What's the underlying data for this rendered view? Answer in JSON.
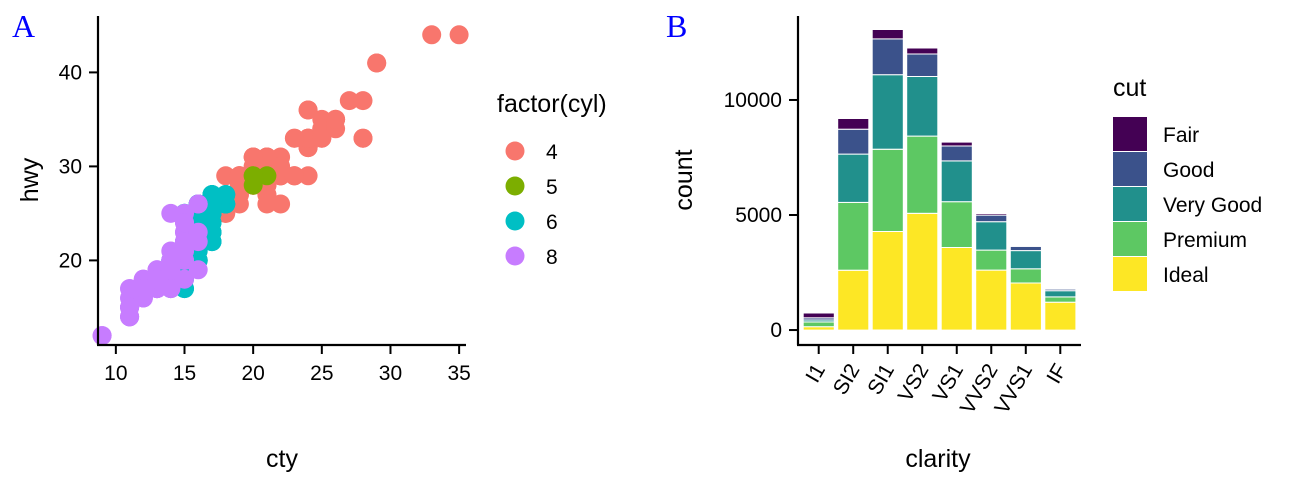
{
  "panel_tags": {
    "a": "A",
    "b": "B",
    "color": "#0000FF"
  },
  "chart_data": [
    {
      "type": "scatter",
      "tag": "A",
      "xlabel": "cty",
      "ylabel": "hwy",
      "xlim": [
        8.7,
        35.5
      ],
      "ylim": [
        11,
        46
      ],
      "xticks": [
        10,
        15,
        20,
        25,
        30,
        35
      ],
      "yticks": [
        20,
        30,
        40
      ],
      "grid": false,
      "legend": {
        "title": "factor(cyl)",
        "placement": "right"
      },
      "series": [
        {
          "name": "4",
          "color": "#F8766D",
          "points": [
            [
              18,
              29
            ],
            [
              21,
              29
            ],
            [
              20,
              31
            ],
            [
              21,
              30
            ],
            [
              18,
              26
            ],
            [
              18,
              26
            ],
            [
              18,
              25
            ],
            [
              19,
              29
            ],
            [
              21,
              29
            ],
            [
              20,
              28
            ],
            [
              19,
              27
            ],
            [
              18,
              25
            ],
            [
              21,
              27
            ],
            [
              19,
              26
            ],
            [
              19,
              28
            ],
            [
              22,
              26
            ],
            [
              21,
              29
            ],
            [
              20,
              29
            ],
            [
              22,
              29
            ],
            [
              24,
              32
            ],
            [
              24,
              32
            ],
            [
              24,
              32
            ],
            [
              22,
              29
            ],
            [
              19,
              29
            ],
            [
              20,
              30
            ],
            [
              23,
              29
            ],
            [
              21,
              28
            ],
            [
              24,
              33
            ],
            [
              33,
              44
            ],
            [
              35,
              44
            ],
            [
              29,
              41
            ],
            [
              24,
              33
            ],
            [
              24,
              33
            ],
            [
              21,
              31
            ],
            [
              21,
              28
            ],
            [
              18,
              26
            ],
            [
              21,
              29
            ],
            [
              19,
              27
            ],
            [
              21,
              30
            ],
            [
              20,
              30
            ],
            [
              21,
              31
            ],
            [
              28,
              33
            ],
            [
              25,
              33
            ],
            [
              24,
              33
            ],
            [
              25,
              34
            ],
            [
              27,
              37
            ],
            [
              25,
              35
            ],
            [
              25,
              34
            ],
            [
              26,
              34
            ],
            [
              26,
              35
            ],
            [
              23,
              33
            ],
            [
              22,
              29
            ],
            [
              24,
              29
            ],
            [
              22,
              29
            ],
            [
              21,
              29
            ],
            [
              17,
              23
            ],
            [
              20,
              31
            ],
            [
              20,
              28
            ],
            [
              21,
              27
            ],
            [
              22,
              31
            ],
            [
              23,
              29
            ],
            [
              28,
              37
            ],
            [
              26,
              35
            ],
            [
              29,
              41
            ],
            [
              21,
              30
            ],
            [
              22,
              30
            ],
            [
              24,
              36
            ],
            [
              23,
              33
            ],
            [
              21,
              28
            ],
            [
              23,
              29
            ],
            [
              24,
              36
            ],
            [
              28,
              33
            ],
            [
              25,
              33
            ],
            [
              26,
              35
            ],
            [
              19,
              29
            ],
            [
              19,
              29
            ],
            [
              20,
              28
            ],
            [
              21,
              31
            ],
            [
              20,
              31
            ],
            [
              16,
              20
            ],
            [
              21,
              26
            ]
          ]
        },
        {
          "name": "5",
          "color": "#7CAE00",
          "points": [
            [
              21,
              29
            ],
            [
              20,
              28
            ],
            [
              20,
              29
            ],
            [
              20,
              29
            ]
          ]
        },
        {
          "name": "6",
          "color": "#00BFC4",
          "points": [
            [
              16,
              26
            ],
            [
              16,
              26
            ],
            [
              17,
              27
            ],
            [
              15,
              25
            ],
            [
              16,
              26
            ],
            [
              15,
              25
            ],
            [
              17,
              26
            ],
            [
              17,
              27
            ],
            [
              16,
              23
            ],
            [
              17,
              25
            ],
            [
              17,
              26
            ],
            [
              15,
              17
            ],
            [
              15,
              17
            ],
            [
              14,
              20
            ],
            [
              16,
              20
            ],
            [
              14,
              19
            ],
            [
              15,
              20
            ],
            [
              17,
              22
            ],
            [
              18,
              27
            ],
            [
              18,
              26
            ],
            [
              17,
              24
            ],
            [
              17,
              23
            ],
            [
              17,
              23
            ],
            [
              16,
              26
            ],
            [
              16,
              23
            ],
            [
              17,
              22
            ],
            [
              17,
              25
            ],
            [
              15,
              19
            ],
            [
              16,
              25
            ],
            [
              15,
              22
            ],
            [
              16,
              26
            ],
            [
              17,
              25
            ],
            [
              18,
              27
            ],
            [
              16,
              24
            ],
            [
              15,
              18
            ],
            [
              18,
              26
            ],
            [
              17,
              25
            ],
            [
              14,
              17
            ],
            [
              15,
              19
            ],
            [
              15,
              25
            ],
            [
              16,
              21
            ],
            [
              17,
              25
            ],
            [
              17,
              26
            ],
            [
              16,
              24
            ],
            [
              14,
              20
            ],
            [
              15,
              22
            ],
            [
              18,
              26
            ],
            [
              17,
              27
            ],
            [
              16,
              26
            ],
            [
              16,
              25
            ],
            [
              18,
              26
            ],
            [
              17,
              26
            ],
            [
              17,
              27
            ],
            [
              16,
              20
            ],
            [
              15,
              20
            ],
            [
              16,
              22
            ],
            [
              17,
              22
            ],
            [
              18,
              26
            ],
            [
              16,
              24
            ],
            [
              17,
              25
            ],
            [
              16,
              24
            ],
            [
              17,
              26
            ],
            [
              17,
              26
            ],
            [
              18,
              27
            ],
            [
              16,
              25
            ],
            [
              16,
              23
            ],
            [
              17,
              24
            ],
            [
              17,
              23
            ],
            [
              16,
              24
            ]
          ]
        },
        {
          "name": "8",
          "color": "#C77CFF",
          "points": [
            [
              15,
              20
            ],
            [
              15,
              25
            ],
            [
              14,
              20
            ],
            [
              15,
              24
            ],
            [
              11,
              15
            ],
            [
              14,
              20
            ],
            [
              13,
              17
            ],
            [
              12,
              17
            ],
            [
              16,
              26
            ],
            [
              15,
              23
            ],
            [
              16,
              26
            ],
            [
              14,
              25
            ],
            [
              11,
              15
            ],
            [
              11,
              16
            ],
            [
              11,
              17
            ],
            [
              12,
              17
            ],
            [
              14,
              19
            ],
            [
              12,
              16
            ],
            [
              13,
              17
            ],
            [
              15,
              18
            ],
            [
              16,
              19
            ],
            [
              15,
              22
            ],
            [
              14,
              18
            ],
            [
              13,
              17
            ],
            [
              13,
              19
            ],
            [
              11,
              14
            ],
            [
              11,
              15
            ],
            [
              12,
              16
            ],
            [
              9,
              12
            ],
            [
              9,
              12
            ],
            [
              11,
              16
            ],
            [
              11,
              15
            ],
            [
              14,
              19
            ],
            [
              12,
              18
            ],
            [
              11,
              14
            ],
            [
              11,
              17
            ],
            [
              11,
              15
            ],
            [
              13,
              18
            ],
            [
              12,
              17
            ],
            [
              14,
              18
            ],
            [
              11,
              14
            ],
            [
              13,
              17
            ],
            [
              12,
              17
            ],
            [
              12,
              18
            ],
            [
              14,
              19
            ],
            [
              11,
              15
            ],
            [
              13,
              17
            ],
            [
              12,
              16
            ],
            [
              14,
              17
            ],
            [
              15,
              21
            ],
            [
              13,
              18
            ],
            [
              12,
              18
            ],
            [
              15,
              20
            ],
            [
              14,
              17
            ],
            [
              11,
              14
            ],
            [
              12,
              17
            ],
            [
              13,
              19
            ],
            [
              15,
              22
            ],
            [
              14,
              21
            ],
            [
              15,
              23
            ],
            [
              15,
              24
            ],
            [
              13,
              17
            ],
            [
              14,
              20
            ],
            [
              16,
              23
            ],
            [
              15,
              21
            ],
            [
              14,
              19
            ],
            [
              13,
              18
            ],
            [
              12,
              17
            ],
            [
              15,
              22
            ],
            [
              16,
              22
            ]
          ]
        }
      ]
    },
    {
      "type": "bar",
      "stacked": true,
      "tag": "B",
      "xlabel": "clarity",
      "ylabel": "count",
      "ylim": [
        -650,
        13650
      ],
      "yticks": [
        0,
        5000,
        10000
      ],
      "grid": false,
      "categories": [
        "I1",
        "SI2",
        "SI1",
        "VS2",
        "VS1",
        "VVS2",
        "VVS1",
        "IF"
      ],
      "legend": {
        "title": "cut",
        "placement": "right"
      },
      "series": [
        {
          "name": "Ideal",
          "color": "#FDE725",
          "values": [
            146,
            2598,
            4282,
            5071,
            3589,
            2606,
            2047,
            1212
          ]
        },
        {
          "name": "Premium",
          "color": "#5DC863",
          "values": [
            205,
            2949,
            3575,
            3357,
            1989,
            870,
            616,
            230
          ]
        },
        {
          "name": "Very Good",
          "color": "#21908C",
          "values": [
            84,
            2100,
            3240,
            2591,
            1775,
            1235,
            789,
            268
          ]
        },
        {
          "name": "Good",
          "color": "#3B528B",
          "values": [
            96,
            1081,
            1560,
            978,
            648,
            286,
            186,
            71
          ]
        },
        {
          "name": "Fair",
          "color": "#440154",
          "values": [
            210,
            466,
            408,
            261,
            170,
            69,
            17,
            9
          ]
        }
      ]
    }
  ]
}
